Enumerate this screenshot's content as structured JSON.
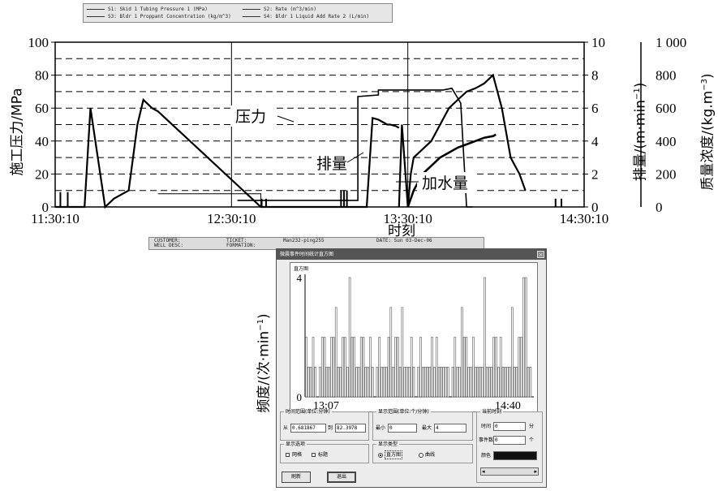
{
  "top_legend": {
    "items": [
      "S1: Skid 1 Tubing Pressure 1 (MPa)",
      "S2: Rate (m^3/min)",
      "S3: Bldr 1 Proppant Concentration (kg/m^3)",
      "S4: Bldr 1 Liquid Add Rate 2 (L/min)"
    ]
  },
  "chart_data": [
    {
      "type": "line",
      "x_ticks": [
        "11:30:10",
        "12:30:10",
        "13:30:10",
        "14:30:10"
      ],
      "xlabel": "时刻",
      "left_axis": {
        "label": "施工压力/MPa",
        "ylim": [
          0,
          100
        ],
        "ticks": [
          "0",
          "20",
          "40",
          "60",
          "80",
          "100"
        ]
      },
      "right_axis_1": {
        "label": "排量/(m·min",
        "superscript": "−1",
        "label_end": ")",
        "ylim": [
          0,
          10
        ],
        "ticks": [
          "0",
          "2",
          "4",
          "6",
          "8",
          "10"
        ]
      },
      "right_axis_2": {
        "label": "质量浓度/(kg.m",
        "superscript": "−3",
        "label_end": ")",
        "ylim": [
          0,
          1000
        ],
        "ticks": [
          "0",
          "200",
          "400",
          "600",
          "800",
          "1 000"
        ]
      },
      "grid": "dashed horizontal, solid vertical at ticks",
      "annotations": [
        "压力",
        "排量",
        "加水量"
      ],
      "series": [
        {
          "name": "压力",
          "axis": "left",
          "x_min": [
            0,
            5,
            10,
            12,
            17,
            20,
            25,
            28,
            30,
            33,
            35,
            70,
            74,
            77,
            80,
            88,
            90,
            92,
            95,
            100,
            103,
            106,
            108,
            110,
            112,
            113,
            114,
            116,
            117
          ],
          "values": [
            0,
            0,
            0,
            60,
            0,
            5,
            10,
            50,
            65,
            60,
            58,
            0,
            0,
            0,
            0,
            0,
            0,
            0,
            0,
            0,
            0,
            0,
            54,
            53,
            51,
            50,
            50,
            49,
            48
          ]
        },
        {
          "name": "排量",
          "axis": "right_1",
          "x_min": [
            62,
            62,
            103,
            103,
            110,
            110,
            130,
            132,
            135,
            138,
            140,
            142
          ],
          "values": [
            0.4,
            0.4,
            0.4,
            6.7,
            6.8,
            7.1,
            7.1,
            7.1,
            7.2,
            6.3,
            0,
            0
          ]
        },
        {
          "name": "加水量",
          "axis": "right_1",
          "x_min": [
            117,
            118,
            120,
            121,
            122,
            125,
            128,
            131,
            134,
            137,
            140,
            143,
            146,
            149,
            152,
            155,
            158,
            160
          ],
          "values": [
            0,
            5,
            0,
            2,
            3,
            3.5,
            4,
            5,
            6,
            6.5,
            7,
            7.2,
            7.5,
            8,
            6,
            3,
            2,
            1
          ]
        },
        {
          "name": "质量浓度",
          "axis": "right_2",
          "x_min": [
            120,
            122,
            125,
            128,
            131,
            134,
            137,
            140,
            143,
            146,
            149,
            150
          ],
          "values": [
            0,
            100,
            200,
            250,
            300,
            330,
            360,
            380,
            400,
            420,
            430,
            440
          ]
        }
      ]
    },
    {
      "type": "bar",
      "title": "直方图",
      "ylabel": "频度/(次·min",
      "ylabel_sup": "−1",
      "ylabel_end": ")",
      "ylim": [
        0,
        4
      ],
      "y_ticks": [
        "0",
        "4"
      ],
      "x_ticks": [
        "13:07",
        "14:40"
      ],
      "values": [
        2,
        1,
        1,
        2,
        1,
        0,
        1,
        2,
        2,
        1,
        1,
        2,
        2,
        3,
        1,
        1,
        2,
        2,
        1,
        4,
        2,
        2,
        1,
        1,
        2,
        2,
        1,
        1,
        2,
        1,
        0,
        1,
        2,
        1,
        1,
        1,
        2,
        3,
        1,
        2,
        2,
        1,
        3,
        1,
        1,
        1,
        2,
        1,
        0,
        1,
        2,
        1,
        1,
        1,
        1,
        2,
        1,
        2,
        1,
        1,
        1,
        1,
        1,
        0,
        1,
        2,
        1,
        1,
        3,
        2,
        2,
        1,
        1,
        2,
        1,
        1,
        1,
        1,
        4,
        1,
        1,
        1,
        2,
        2,
        1,
        2,
        1,
        1,
        1,
        1,
        3,
        1,
        1,
        2,
        2,
        4,
        4,
        1,
        1,
        0
      ]
    }
  ],
  "info_strip": {
    "customer_label": "CUSTOMER:",
    "ticket_label": "TICKET:",
    "well_label": "Man232-ping255",
    "date_label": "DATE: Sun 03-Dec-06",
    "well_desc_label": "WELL DESC:",
    "formation_label": "FORMATION:"
  },
  "dialog": {
    "title": "微震事件时间统计直方图",
    "close": "×",
    "time_range": {
      "group_label": "时间范围(单位:分钟)",
      "from_label": "从",
      "from_value": "0.681867",
      "to_label": "到",
      "to_value": "82.3978"
    },
    "display_range": {
      "group_label": "显示范围(单位:个/分钟)",
      "min_label": "最小",
      "min_value": "0",
      "max_label": "最大",
      "max_value": "4"
    },
    "current_time": {
      "group_label": "当前时刻",
      "time_label": "时间",
      "time_value": "0",
      "time_unit": "分",
      "count_label": "事件数",
      "count_value": "0",
      "count_unit": "个",
      "color_label": "颜色",
      "color_value": "#111111"
    },
    "display_options": {
      "group_label": "显示选项",
      "grid_label": "网格",
      "title_label": "标题"
    },
    "display_type": {
      "group_label": "显示类型",
      "bar_label": "直方图",
      "curve_label": "曲线"
    },
    "refresh_button": "刷新",
    "exit_button": "退出"
  }
}
